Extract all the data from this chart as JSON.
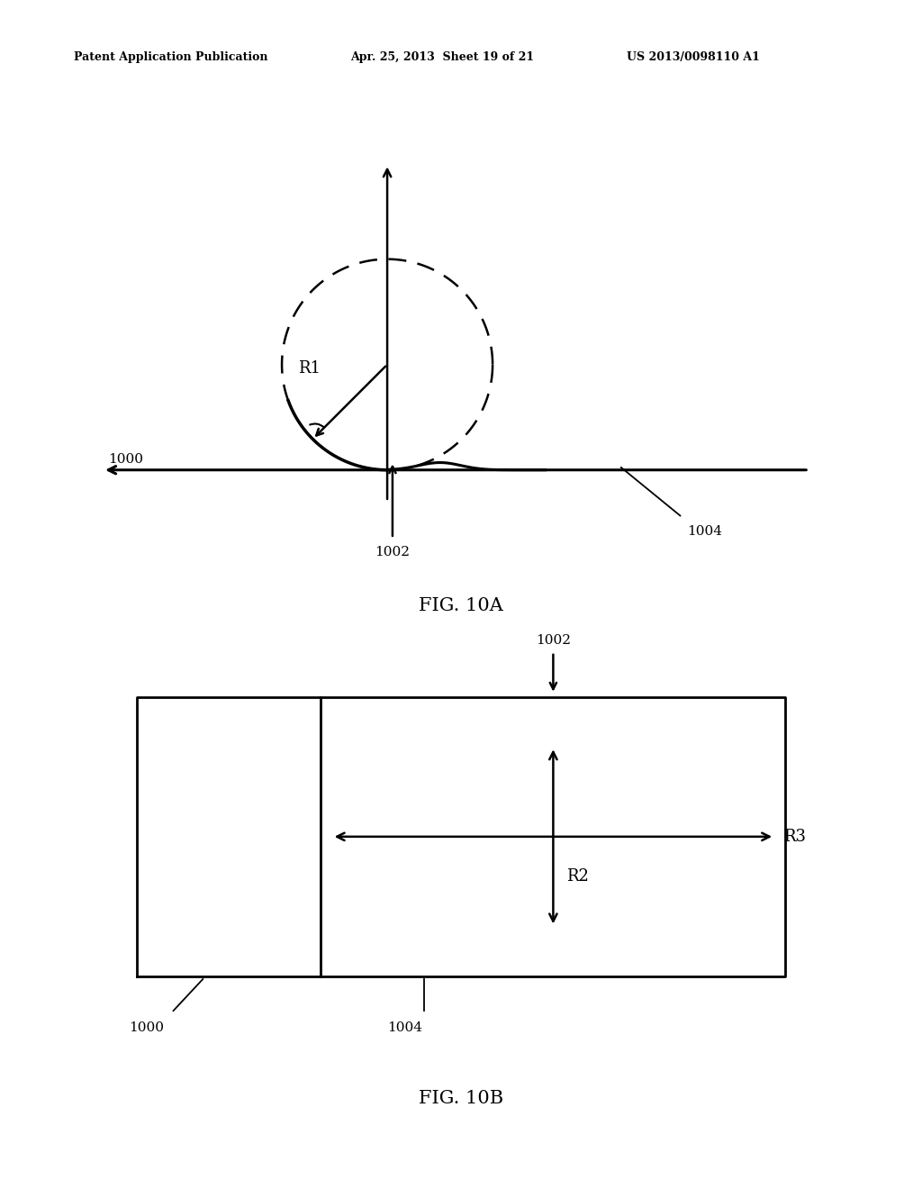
{
  "bg_color": "#ffffff",
  "header_left": "Patent Application Publication",
  "header_center": "Apr. 25, 2013  Sheet 19 of 21",
  "header_right": "US 2013/0098110 A1",
  "fig10a_caption": "FIG. 10A",
  "fig10b_caption": "FIG. 10B",
  "label_R1": "R1",
  "label_R2": "R2",
  "label_R3": "R3",
  "label_1000": "1000",
  "label_1002_a": "1002",
  "label_1002_b": "1002",
  "label_1004_a": "1004",
  "label_1004_b": "1004"
}
